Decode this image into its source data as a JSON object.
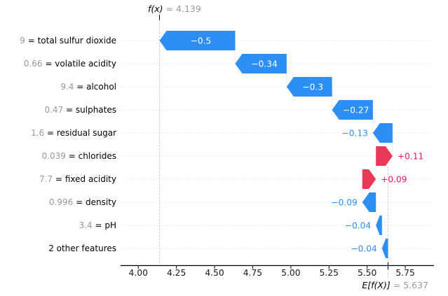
{
  "chart_data": {
    "type": "bar",
    "subtype": "shap-waterfall",
    "title": "",
    "fx": {
      "label": "f(x)",
      "equals": "=",
      "value": "4.139",
      "numeric": 4.139
    },
    "efx": {
      "label": "E[f(X)]",
      "equals": "=",
      "value": "5.637",
      "numeric": 5.637
    },
    "separator": " = ",
    "features": [
      {
        "value_label": "9",
        "name": "total sulfur dioxide",
        "contribution": -0.5,
        "bar_label": "−0.5"
      },
      {
        "value_label": "0.66",
        "name": "volatile acidity",
        "contribution": -0.34,
        "bar_label": "−0.34"
      },
      {
        "value_label": "9.4",
        "name": "alcohol",
        "contribution": -0.3,
        "bar_label": "−0.3"
      },
      {
        "value_label": "0.47",
        "name": "sulphates",
        "contribution": -0.27,
        "bar_label": "−0.27"
      },
      {
        "value_label": "1.6",
        "name": "residual sugar",
        "contribution": -0.13,
        "bar_label": "−0.13"
      },
      {
        "value_label": "0.039",
        "name": "chlorides",
        "contribution": 0.11,
        "bar_label": "+0.11"
      },
      {
        "value_label": "7.7",
        "name": "fixed acidity",
        "contribution": 0.09,
        "bar_label": "+0.09"
      },
      {
        "value_label": "0.996",
        "name": "density",
        "contribution": -0.09,
        "bar_label": "−0.09"
      },
      {
        "value_label": "3.4",
        "name": "pH",
        "contribution": -0.04,
        "bar_label": "−0.04"
      },
      {
        "value_label": "",
        "name": "2 other features",
        "contribution": -0.04,
        "bar_label": "−0.04"
      }
    ],
    "x_axis": {
      "tick_labels": [
        "4.00",
        "4.25",
        "4.50",
        "4.75",
        "5.00",
        "5.25",
        "5.50",
        "5.75"
      ],
      "tick_values": [
        4.0,
        4.25,
        4.5,
        4.75,
        5.0,
        5.25,
        5.5,
        5.75
      ],
      "xlim": [
        3.884,
        5.929
      ],
      "grid": false
    },
    "legend": null,
    "colors": {
      "positive": "#e8395b",
      "negative": "#2d8ef3",
      "positive_text": "#e8175c",
      "negative_text": "#2d8ef3",
      "bar_label_inside": "#ffffff",
      "feature_value_gray": "#999999",
      "feature_name": "#000000",
      "dashed_line": "#c9c9c9",
      "leader_dots": "#e2e2e2",
      "axis": "#000000",
      "tick_text": "#1a1a1a"
    }
  }
}
